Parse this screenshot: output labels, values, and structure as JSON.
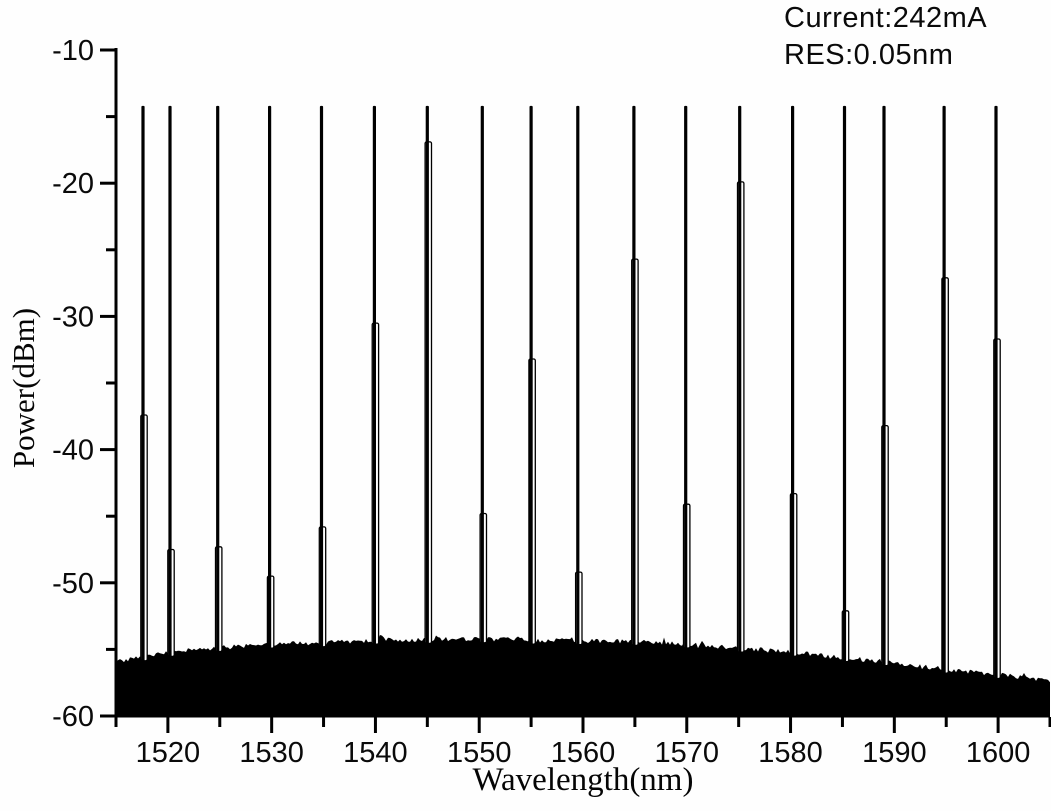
{
  "annotation": {
    "current": "Current:242mA",
    "resolution": "RES:0.05nm"
  },
  "chart_data": {
    "type": "line",
    "title": "",
    "xlabel": "Wavelength(nm)",
    "ylabel": "Power(dBm)",
    "xlim": [
      1515,
      1605
    ],
    "ylim": [
      -60,
      -10
    ],
    "x_major_ticks": [
      1520,
      1530,
      1540,
      1550,
      1560,
      1570,
      1580,
      1590,
      1600
    ],
    "x_minor_step": 5,
    "y_major_ticks": [
      -10,
      -20,
      -30,
      -40,
      -50,
      -60
    ],
    "y_minor_step": 5,
    "grid": false,
    "legend": "none",
    "annotations": [
      "Current:242mA",
      "RES:0.05nm"
    ],
    "peak_top_dbm": -14.2,
    "peaks": [
      {
        "wavelength": 1517.6,
        "top_dbm": -14.2,
        "sidemode_dbm": -37.4
      },
      {
        "wavelength": 1520.2,
        "top_dbm": -14.2,
        "sidemode_dbm": -47.5
      },
      {
        "wavelength": 1524.8,
        "top_dbm": -14.2,
        "sidemode_dbm": -47.3
      },
      {
        "wavelength": 1529.8,
        "top_dbm": -14.2,
        "sidemode_dbm": -49.5
      },
      {
        "wavelength": 1534.8,
        "top_dbm": -14.2,
        "sidemode_dbm": -45.8
      },
      {
        "wavelength": 1539.9,
        "top_dbm": -14.2,
        "sidemode_dbm": -30.5
      },
      {
        "wavelength": 1545.0,
        "top_dbm": -14.2,
        "sidemode_dbm": -16.9
      },
      {
        "wavelength": 1550.3,
        "top_dbm": -14.2,
        "sidemode_dbm": -44.8
      },
      {
        "wavelength": 1555.0,
        "top_dbm": -14.2,
        "sidemode_dbm": -33.2
      },
      {
        "wavelength": 1559.5,
        "top_dbm": -14.2,
        "sidemode_dbm": -49.2
      },
      {
        "wavelength": 1564.9,
        "top_dbm": -14.2,
        "sidemode_dbm": -25.7
      },
      {
        "wavelength": 1569.9,
        "top_dbm": -14.2,
        "sidemode_dbm": -44.1
      },
      {
        "wavelength": 1575.1,
        "top_dbm": -14.2,
        "sidemode_dbm": -19.9
      },
      {
        "wavelength": 1580.2,
        "top_dbm": -14.2,
        "sidemode_dbm": -43.3
      },
      {
        "wavelength": 1585.2,
        "top_dbm": -14.2,
        "sidemode_dbm": -52.1
      },
      {
        "wavelength": 1589.0,
        "top_dbm": -14.2,
        "sidemode_dbm": -38.2
      },
      {
        "wavelength": 1594.8,
        "top_dbm": -14.2,
        "sidemode_dbm": -27.1
      },
      {
        "wavelength": 1599.8,
        "top_dbm": -14.2,
        "sidemode_dbm": -31.7
      }
    ],
    "noise_floor": [
      [
        1515,
        -55.9
      ],
      [
        1518,
        -55.5
      ],
      [
        1522,
        -55.0
      ],
      [
        1526,
        -54.8
      ],
      [
        1530,
        -54.6
      ],
      [
        1535,
        -54.5
      ],
      [
        1540,
        -54.3
      ],
      [
        1545,
        -54.25
      ],
      [
        1550,
        -54.2
      ],
      [
        1555,
        -54.3
      ],
      [
        1560,
        -54.35
      ],
      [
        1565,
        -54.4
      ],
      [
        1570,
        -54.6
      ],
      [
        1575,
        -54.9
      ],
      [
        1580,
        -55.2
      ],
      [
        1585,
        -55.6
      ],
      [
        1590,
        -56.0
      ],
      [
        1595,
        -56.5
      ],
      [
        1600,
        -56.9
      ],
      [
        1605,
        -57.3
      ]
    ],
    "colors": {
      "trace": "#000000",
      "background": "#fefefe",
      "text": "#0a0a0a"
    }
  }
}
